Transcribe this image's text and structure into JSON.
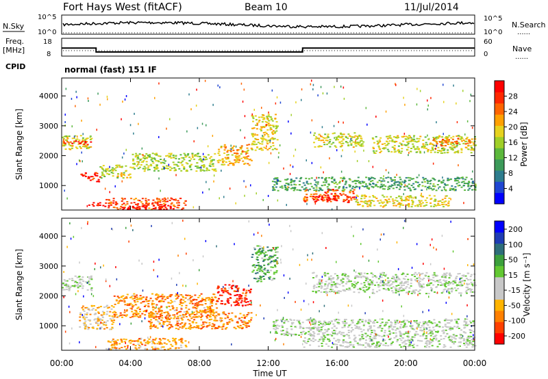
{
  "header": {
    "title": "Fort Hays West (fitACF)",
    "beam": "Beam 10",
    "date": "11/Jul/2014"
  },
  "nsky_panel": {
    "left_label": "N.Sky",
    "right_label": "N.Search",
    "left_ticks": [
      "10^5",
      "10^0"
    ],
    "right_ticks": [
      "10^5",
      "10^0"
    ],
    "legend_line": "......"
  },
  "freq_panel": {
    "left_label": "Freq.",
    "left_unit": "[MHz]",
    "right_label": "Nave",
    "left_ticks": [
      "18",
      "8"
    ],
    "right_ticks": [
      "60",
      "0"
    ],
    "legend_line": "......",
    "freq_steps": [
      {
        "from_hour": 0,
        "to_hour": 2,
        "mhz": 12.5
      },
      {
        "from_hour": 2,
        "to_hour": 14,
        "mhz": 10.3
      },
      {
        "from_hour": 14,
        "to_hour": 24,
        "mhz": 12.5
      }
    ]
  },
  "cpid": {
    "label": "CPID",
    "value": "normal (fast) 151 IF"
  },
  "chart_data": [
    {
      "type": "heatmap",
      "name": "power",
      "ylabel": "Slant Range [km]",
      "xlabel": "Time UT",
      "xlim": [
        0,
        24
      ],
      "ylim": [
        180,
        4600
      ],
      "x_ticks": [
        "00:00",
        "04:00",
        "08:00",
        "12:00",
        "16:00",
        "20:00",
        "00:00"
      ],
      "y_ticks": [
        1000,
        2000,
        3000,
        4000
      ],
      "colorbar": {
        "label": "Power [dB]",
        "range": [
          0,
          32
        ],
        "ticks": [
          4,
          8,
          12,
          16,
          20,
          24,
          28
        ],
        "colors": [
          "#0000ff",
          "#1f46d2",
          "#2e7d8e",
          "#3c9a5a",
          "#5cb83c",
          "#a0cf28",
          "#e6d21e",
          "#ffa000",
          "#ff6400",
          "#ff2800",
          "#ff0000"
        ]
      },
      "bands": [
        {
          "t": [
            0.0,
            1.7
          ],
          "r": [
            2200,
            2700
          ],
          "level": 0.55
        },
        {
          "t": [
            0.0,
            1.7
          ],
          "r": [
            2380,
            2520
          ],
          "level": 0.85
        },
        {
          "t": [
            1.5,
            2.5
          ],
          "r": [
            300,
            450
          ],
          "level": 0.9
        },
        {
          "t": [
            1.0,
            2.2
          ],
          "r": [
            1150,
            1450
          ],
          "level": 0.9
        },
        {
          "t": [
            2.2,
            4.0
          ],
          "r": [
            1250,
            1700
          ],
          "level": 0.55
        },
        {
          "t": [
            2.5,
            7.2
          ],
          "r": [
            220,
            600
          ],
          "level": 0.8
        },
        {
          "t": [
            3.5,
            6.5
          ],
          "r": [
            220,
            380
          ],
          "level": 1.0
        },
        {
          "t": [
            4.0,
            9.0
          ],
          "r": [
            1500,
            2100
          ],
          "level": 0.5
        },
        {
          "t": [
            9.0,
            11.0
          ],
          "r": [
            1700,
            2400
          ],
          "level": 0.65
        },
        {
          "t": [
            11.0,
            12.5
          ],
          "r": [
            2200,
            3400
          ],
          "level": 0.6
        },
        {
          "t": [
            12.2,
            24.0
          ],
          "r": [
            850,
            1300
          ],
          "level": 0.35
        },
        {
          "t": [
            14.0,
            17.0
          ],
          "r": [
            450,
            900
          ],
          "level": 0.8
        },
        {
          "t": [
            14.5,
            16.0
          ],
          "r": [
            500,
            700
          ],
          "level": 1.0
        },
        {
          "t": [
            17.0,
            22.5
          ],
          "r": [
            300,
            700
          ],
          "level": 0.6
        },
        {
          "t": [
            14.5,
            17.5
          ],
          "r": [
            2300,
            2800
          ],
          "level": 0.55
        },
        {
          "t": [
            18.0,
            24.0
          ],
          "r": [
            2100,
            2700
          ],
          "level": 0.55
        },
        {
          "t": [
            21.5,
            24.0
          ],
          "r": [
            2350,
            2600
          ],
          "level": 0.75
        }
      ]
    },
    {
      "type": "heatmap",
      "name": "velocity",
      "ylabel": "Slant Range [km]",
      "xlabel": "Time UT",
      "xlim": [
        0,
        24
      ],
      "ylim": [
        180,
        4600
      ],
      "x_ticks": [
        "00:00",
        "04:00",
        "08:00",
        "12:00",
        "16:00",
        "20:00",
        "00:00"
      ],
      "y_ticks": [
        1000,
        2000,
        3000,
        4000
      ],
      "colorbar": {
        "label": "Velocity [m s⁻¹]",
        "range": [
          -250,
          250
        ],
        "ticks": [
          "200",
          "100",
          "50",
          "15",
          "-15",
          "-50",
          "-100",
          "-200"
        ],
        "colors": [
          "#ff0000",
          "#ff4000",
          "#ff8000",
          "#ffb400",
          "#c8c8c8",
          "#c8c8c8",
          "#62c832",
          "#3ca03c",
          "#2e6e7a",
          "#1f3cb4",
          "#0000ff"
        ]
      },
      "bands": [
        {
          "t": [
            0.0,
            1.7
          ],
          "r": [
            2200,
            2700
          ],
          "level": 0.5
        },
        {
          "t": [
            1.0,
            3.0
          ],
          "r": [
            900,
            1700
          ],
          "level": 0.35
        },
        {
          "t": [
            2.5,
            7.2
          ],
          "r": [
            220,
            600
          ],
          "level": 0.28
        },
        {
          "t": [
            3.0,
            9.0
          ],
          "r": [
            1300,
            2100
          ],
          "level": 0.25
        },
        {
          "t": [
            9.0,
            11.0
          ],
          "r": [
            1700,
            2400
          ],
          "level": 0.08
        },
        {
          "t": [
            5.0,
            11.0
          ],
          "r": [
            900,
            1500
          ],
          "level": 0.25
        },
        {
          "t": [
            11.0,
            12.5
          ],
          "r": [
            2500,
            3700
          ],
          "level": 0.65
        },
        {
          "t": [
            12.2,
            24.0
          ],
          "r": [
            700,
            1250
          ],
          "level": 0.5
        },
        {
          "t": [
            14.0,
            24.0
          ],
          "r": [
            300,
            700
          ],
          "level": 0.5
        },
        {
          "t": [
            14.5,
            24.0
          ],
          "r": [
            2100,
            2800
          ],
          "level": 0.5
        }
      ]
    }
  ]
}
